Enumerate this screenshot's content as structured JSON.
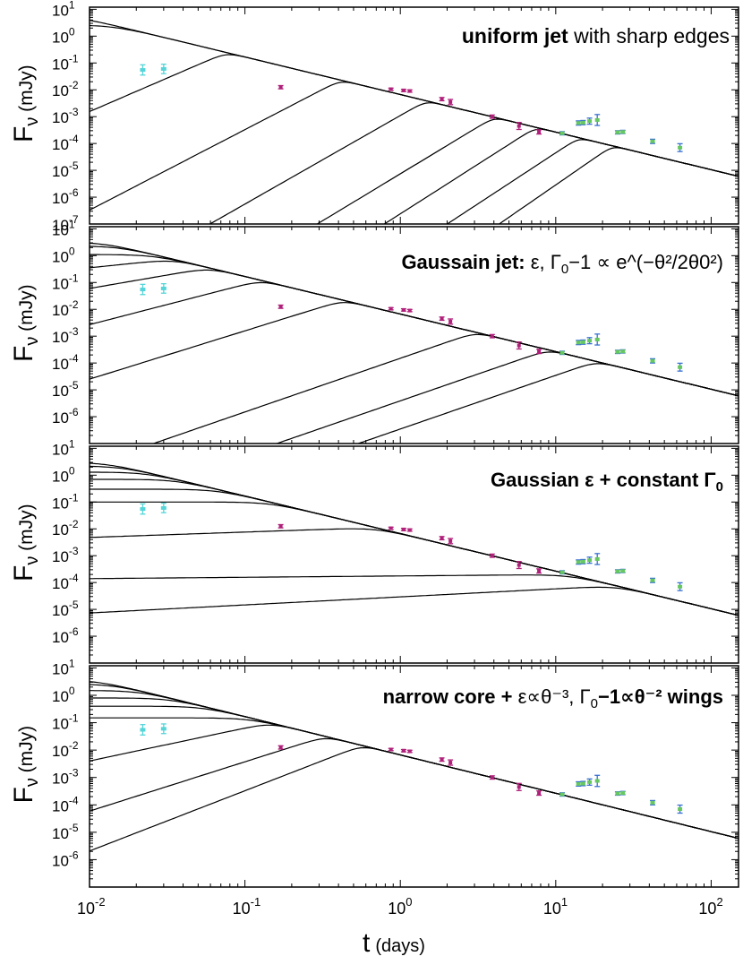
{
  "chart_data": {
    "type": "line",
    "x_scale": "log",
    "y_scale": "log",
    "xlim": [
      0.01,
      150
    ],
    "ylim": [
      1e-07,
      12
    ],
    "xlabel": "t",
    "xlabel_unit": "(days)",
    "ylabel_main": "F",
    "ylabel_sub": "ν",
    "ylabel_unit": "(mJy)",
    "x_tick_labels": [
      {
        "value": 0.01,
        "base": "10",
        "exp": "-2"
      },
      {
        "value": 0.1,
        "base": "10",
        "exp": "-1"
      },
      {
        "value": 1,
        "base": "10",
        "exp": "0"
      },
      {
        "value": 10,
        "base": "10",
        "exp": "1"
      },
      {
        "value": 100,
        "base": "10",
        "exp": "2"
      }
    ],
    "model": {
      "late_time_slope": -1.4,
      "late_time_anchor_t": 10,
      "late_time_anchor_flux": 0.000265
    },
    "data_points": {
      "early": [
        {
          "t": 0.022,
          "flux": 0.055,
          "err_factor": 1.55
        },
        {
          "t": 0.03,
          "flux": 0.06,
          "err_factor": 1.5
        }
      ],
      "main": [
        {
          "t": 0.17,
          "flux": 0.0125,
          "err_factor": 1.15
        },
        {
          "t": 0.87,
          "flux": 0.0105,
          "err_factor": 1.1
        },
        {
          "t": 1.05,
          "flux": 0.0095,
          "err_factor": 1.1
        },
        {
          "t": 1.15,
          "flux": 0.009,
          "err_factor": 1.1
        },
        {
          "t": 1.85,
          "flux": 0.0045,
          "err_factor": 1.15
        },
        {
          "t": 2.1,
          "flux": 0.0035,
          "err_factor": 1.25
        },
        {
          "t": 3.9,
          "flux": 0.001,
          "err_factor": 1.15
        },
        {
          "t": 5.8,
          "flux": 0.00045,
          "err_factor": 1.35
        },
        {
          "t": 7.8,
          "flux": 0.00027,
          "err_factor": 1.2
        }
      ],
      "late": [
        {
          "t": 11.0,
          "flux": 0.00024,
          "err_factor": 1.15
        },
        {
          "t": 14.0,
          "flux": 0.00058,
          "err_factor": 1.2
        },
        {
          "t": 15.0,
          "flux": 0.0006,
          "err_factor": 1.2
        },
        {
          "t": 16.5,
          "flux": 0.00068,
          "err_factor": 1.3
        },
        {
          "t": 18.5,
          "flux": 0.00075,
          "err_factor": 1.6
        },
        {
          "t": 25.0,
          "flux": 0.00026,
          "err_factor": 1.15
        },
        {
          "t": 27.0,
          "flux": 0.00027,
          "err_factor": 1.15
        },
        {
          "t": 42.0,
          "flux": 0.00012,
          "err_factor": 1.2
        },
        {
          "t": 63.0,
          "flux": 7e-05,
          "err_factor": 1.4
        }
      ]
    },
    "colors": {
      "early": "#55d5d8",
      "main": "#b0207a",
      "late_fill": "#66c860",
      "late_err": "#3a70d0",
      "curve": "#000000"
    },
    "panels": [
      {
        "title": {
          "bold": "uniform jet",
          "rest": " with sharp edges",
          "greek": "",
          "sub": "",
          "tail": ""
        },
        "y_ticks": [
          {
            "value": 10,
            "exp": "1"
          },
          {
            "value": 1,
            "exp": "0"
          },
          {
            "value": 0.1,
            "exp": "-1"
          },
          {
            "value": 0.01,
            "exp": "-2"
          },
          {
            "value": 0.001,
            "exp": "-3"
          },
          {
            "value": 0.0001,
            "exp": "-4"
          },
          {
            "value": 1e-05,
            "exp": "-5"
          },
          {
            "value": 1e-06,
            "exp": "-6"
          },
          {
            "value": 1e-07,
            "exp": "-7"
          }
        ],
        "curves": [
          {
            "t_peak": 0.012,
            "f_peak": 5.8,
            "rise_slope": 0
          },
          {
            "t_peak": 0.012,
            "f_peak": 2.6,
            "rise_slope": 0
          },
          {
            "t_peak": 0.07,
            "f_peak": 0.2,
            "rise_slope": 2.5
          },
          {
            "t_peak": 0.4,
            "f_peak": 0.021,
            "rise_slope": 3
          },
          {
            "t_peak": 1.5,
            "f_peak": 0.0042,
            "rise_slope": 3.3
          },
          {
            "t_peak": 4.0,
            "f_peak": 0.00095,
            "rise_slope": 3.5
          },
          {
            "t_peak": 7.0,
            "f_peak": 0.00032,
            "rise_slope": 3.7
          },
          {
            "t_peak": 12.0,
            "f_peak": 9e-05,
            "rise_slope": 3.8
          },
          {
            "t_peak": 18.0,
            "f_peak": 3e-05,
            "rise_slope": 4
          }
        ]
      },
      {
        "title": {
          "bold": "Gaussain jet:",
          "rest": " ε, Γ",
          "greek": "",
          "sub": "0",
          "tail": "−1 ∝ e^(−θ²/2θ0²)"
        },
        "y_ticks": [
          {
            "value": 10,
            "exp": "1"
          },
          {
            "value": 1,
            "exp": "0"
          },
          {
            "value": 0.1,
            "exp": "-1"
          },
          {
            "value": 0.01,
            "exp": "-2"
          },
          {
            "value": 0.001,
            "exp": "-3"
          },
          {
            "value": 0.0001,
            "exp": "-4"
          },
          {
            "value": 1e-05,
            "exp": "-5"
          },
          {
            "value": 1e-06,
            "exp": "-6"
          }
        ],
        "curves": [
          {
            "t_peak": 0.012,
            "f_peak": 3.2,
            "rise_slope": 0
          },
          {
            "t_peak": 0.012,
            "f_peak": 2.3,
            "rise_slope": 0
          },
          {
            "t_peak": 0.012,
            "f_peak": 1.1,
            "rise_slope": 0
          },
          {
            "t_peak": 0.015,
            "f_peak": 0.45,
            "rise_slope": 0.6
          },
          {
            "t_peak": 0.025,
            "f_peak": 0.15,
            "rise_slope": 1
          },
          {
            "t_peak": 0.05,
            "f_peak": 0.03,
            "rise_slope": 1.5
          },
          {
            "t_peak": 0.2,
            "f_peak": 0.0055,
            "rise_slope": 1.8
          },
          {
            "t_peak": 2.0,
            "f_peak": 0.0006,
            "rise_slope": 2
          },
          {
            "t_peak": 6.0,
            "f_peak": 0.00014,
            "rise_slope": 2
          },
          {
            "t_peak": 12.0,
            "f_peak": 5e-05,
            "rise_slope": 2
          }
        ]
      },
      {
        "title": {
          "bold": "Gaussian",
          "rest": " ε + constant Γ",
          "greek": "",
          "sub": "0",
          "tail": ""
        },
        "y_ticks": [
          {
            "value": 10,
            "exp": "1"
          },
          {
            "value": 1,
            "exp": "0"
          },
          {
            "value": 0.1,
            "exp": "-1"
          },
          {
            "value": 0.01,
            "exp": "-2"
          },
          {
            "value": 0.001,
            "exp": "-3"
          },
          {
            "value": 0.0001,
            "exp": "-4"
          },
          {
            "value": 1e-05,
            "exp": "-5"
          },
          {
            "value": 1e-06,
            "exp": "-6"
          }
        ],
        "curves": [
          {
            "t_peak": 0.012,
            "f_peak": 3.0,
            "rise_slope": 0
          },
          {
            "t_peak": 0.012,
            "f_peak": 2.2,
            "rise_slope": 0
          },
          {
            "t_peak": 0.012,
            "f_peak": 1.3,
            "rise_slope": 0
          },
          {
            "t_peak": 0.012,
            "f_peak": 0.7,
            "rise_slope": 0
          },
          {
            "t_peak": 0.012,
            "f_peak": 0.3,
            "rise_slope": 0
          },
          {
            "t_peak": 0.012,
            "f_peak": 0.1,
            "rise_slope": 0
          },
          {
            "t_peak": 0.02,
            "f_peak": 0.0055,
            "rise_slope": 0.2
          },
          {
            "t_peak": 0.5,
            "f_peak": 0.00017,
            "rise_slope": 0.05
          },
          {
            "t_peak": 11.0,
            "f_peak": 6e-05,
            "rise_slope": 0.3
          }
        ]
      },
      {
        "title": {
          "bold": "narrow core +",
          "rest": " ε∝θ⁻³, Γ",
          "greek": "",
          "sub": "0",
          "tail": "−1∝θ⁻² wings"
        },
        "y_ticks": [
          {
            "value": 10,
            "exp": "1"
          },
          {
            "value": 1,
            "exp": "0"
          },
          {
            "value": 0.1,
            "exp": "-1"
          },
          {
            "value": 0.01,
            "exp": "-2"
          },
          {
            "value": 0.001,
            "exp": "-3"
          },
          {
            "value": 0.0001,
            "exp": "-4"
          },
          {
            "value": 1e-05,
            "exp": "-5"
          },
          {
            "value": 1e-06,
            "exp": "-6"
          }
        ],
        "curves": [
          {
            "t_peak": 0.012,
            "f_peak": 3.6,
            "rise_slope": 0
          },
          {
            "t_peak": 0.012,
            "f_peak": 2.6,
            "rise_slope": 0
          },
          {
            "t_peak": 0.012,
            "f_peak": 1.5,
            "rise_slope": 0
          },
          {
            "t_peak": 0.012,
            "f_peak": 0.8,
            "rise_slope": 0
          },
          {
            "t_peak": 0.012,
            "f_peak": 0.4,
            "rise_slope": 0
          },
          {
            "t_peak": 0.012,
            "f_peak": 0.15,
            "rise_slope": 0
          },
          {
            "t_peak": 0.03,
            "f_peak": 0.015,
            "rise_slope": 1.2
          },
          {
            "t_peak": 0.08,
            "f_peak": 0.0025,
            "rise_slope": 1.8
          },
          {
            "t_peak": 0.15,
            "f_peak": 0.0008,
            "rise_slope": 2.2
          }
        ]
      }
    ]
  }
}
